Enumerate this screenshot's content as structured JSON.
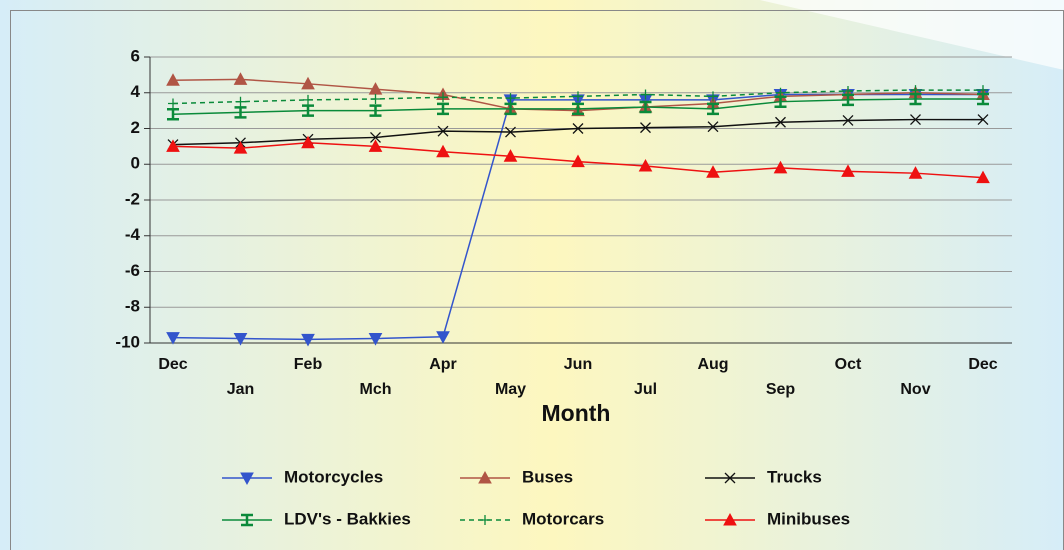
{
  "chart_data": {
    "type": "line",
    "x_label": "Month",
    "categories": [
      "Dec",
      "Jan",
      "Feb",
      "Mch",
      "Apr",
      "May",
      "Jun",
      "Jul",
      "Aug",
      "Sep",
      "Oct",
      "Nov",
      "Dec"
    ],
    "ylim": [
      -10,
      6
    ],
    "yticks": [
      -10,
      -8,
      -6,
      -4,
      -2,
      0,
      2,
      4,
      6
    ],
    "grid": true,
    "legend": "bottom",
    "series": [
      {
        "name": "Motorcycles",
        "color": "#3355cc",
        "marker": "triangle-down",
        "dash": false,
        "values": [
          -9.7,
          -9.75,
          -9.8,
          -9.75,
          -9.65,
          3.6,
          3.6,
          3.6,
          3.6,
          3.9,
          3.9,
          3.9,
          3.9
        ]
      },
      {
        "name": "Buses",
        "color": "#b05545",
        "marker": "triangle-up",
        "dash": false,
        "values": [
          4.7,
          4.75,
          4.5,
          4.2,
          3.9,
          3.1,
          3.0,
          3.2,
          3.4,
          3.8,
          3.9,
          4.0,
          3.9
        ]
      },
      {
        "name": "Trucks",
        "color": "#111111",
        "marker": "x",
        "dash": false,
        "values": [
          1.1,
          1.2,
          1.4,
          1.5,
          1.85,
          1.8,
          2.0,
          2.05,
          2.1,
          2.35,
          2.45,
          2.5,
          2.5
        ]
      },
      {
        "name": "LDV's - Bakkies",
        "color": "#0a8a3a",
        "marker": "ibeam",
        "dash": false,
        "values": [
          2.8,
          2.9,
          3.0,
          3.0,
          3.1,
          3.1,
          3.1,
          3.2,
          3.1,
          3.5,
          3.6,
          3.65,
          3.65
        ]
      },
      {
        "name": "Motorcars",
        "color": "#0a8a3a",
        "marker": "plus",
        "dash": true,
        "values": [
          3.4,
          3.5,
          3.6,
          3.65,
          3.75,
          3.7,
          3.8,
          3.9,
          3.8,
          4.0,
          4.1,
          4.15,
          4.15
        ]
      },
      {
        "name": "Minibuses",
        "color": "#ee1111",
        "marker": "triangle-up",
        "dash": false,
        "values": [
          1.0,
          0.9,
          1.2,
          1.0,
          0.7,
          0.45,
          0.15,
          -0.1,
          -0.45,
          -0.2,
          -0.4,
          -0.5,
          -0.75
        ]
      }
    ]
  }
}
